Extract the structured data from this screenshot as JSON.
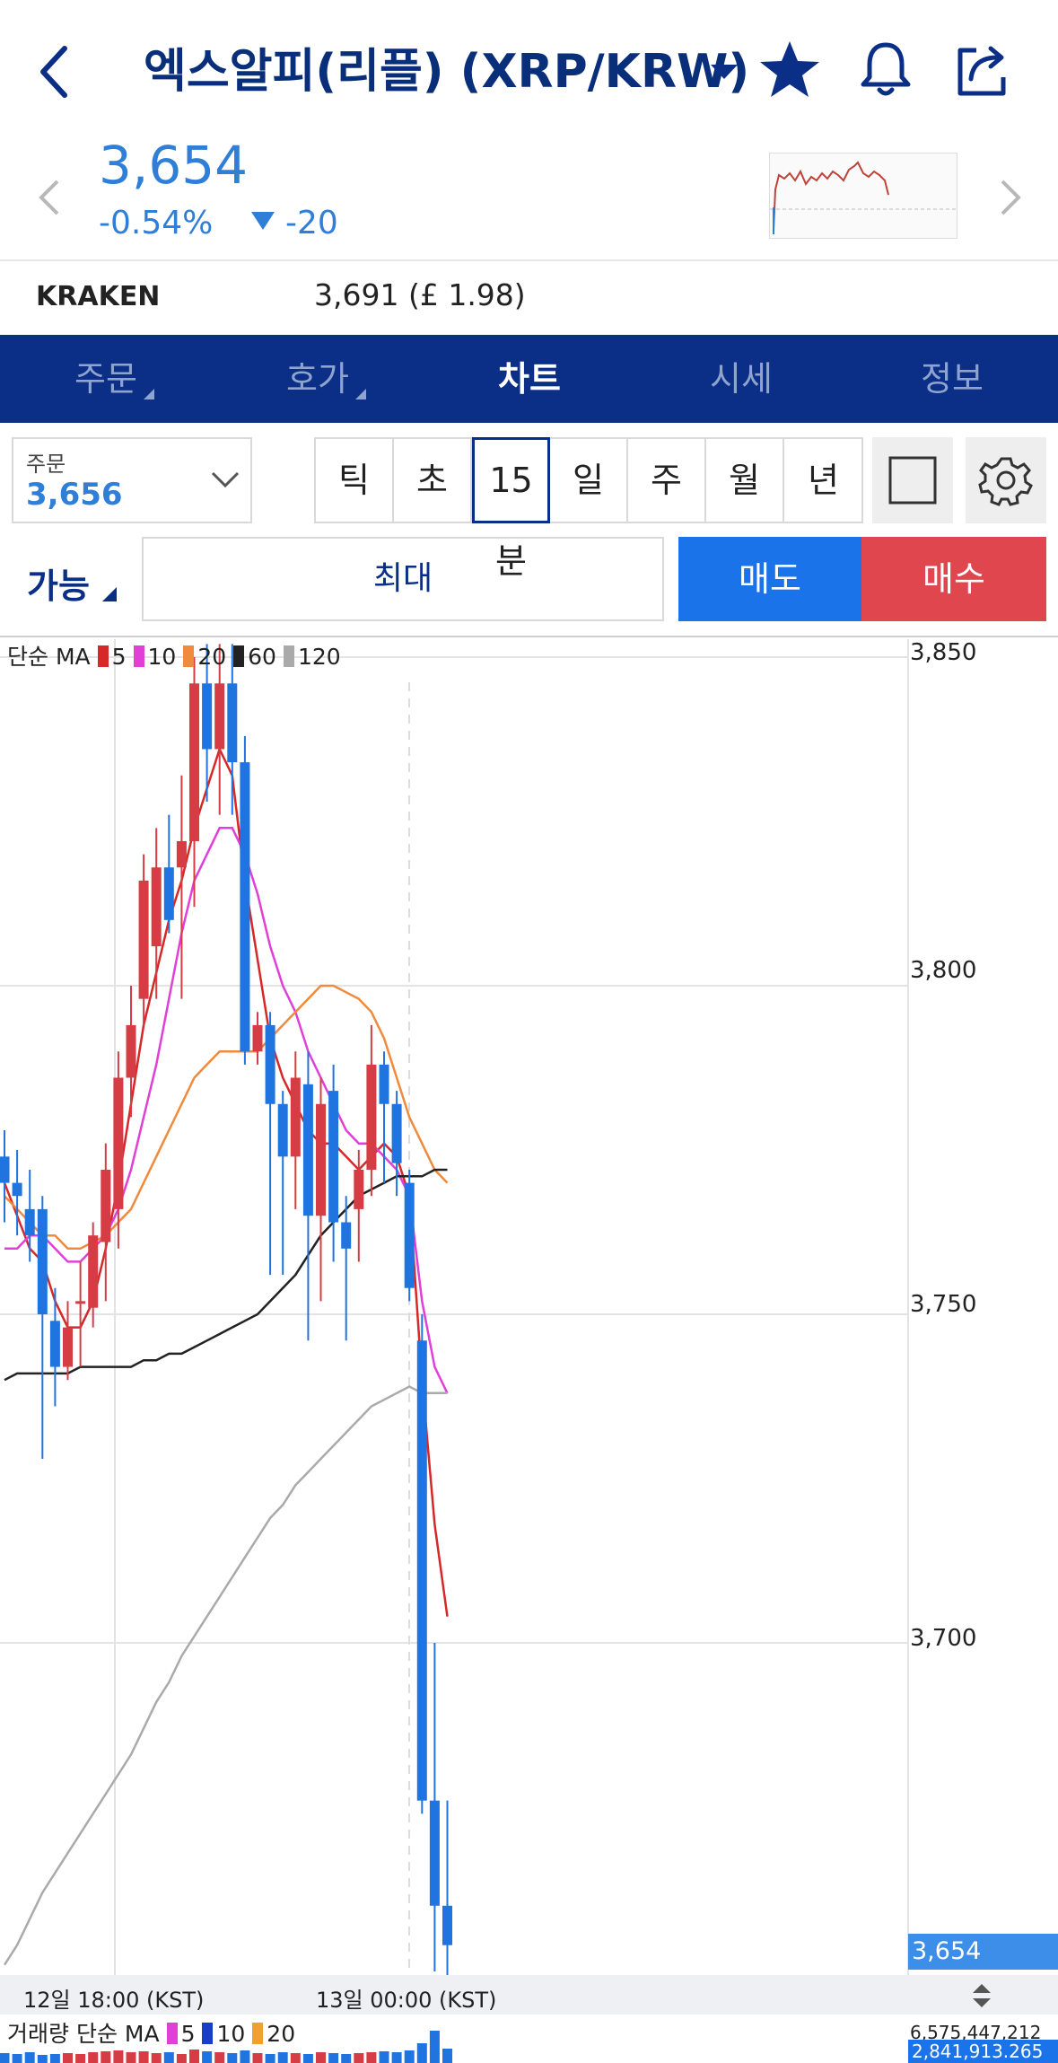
{
  "header": {
    "title": "엑스알피(리플) (XRP/KRW)"
  },
  "price": {
    "current": "3,654",
    "change_pct": "-0.54%",
    "change_abs": "-20",
    "direction": "down",
    "color": "#2f7ed8"
  },
  "exchange": {
    "name": "KRAKEN",
    "value": "3,691 (£ 1.98)"
  },
  "tabs": [
    {
      "label": "주문",
      "has_menu": true,
      "active": false
    },
    {
      "label": "호가",
      "has_menu": true,
      "active": false
    },
    {
      "label": "차트",
      "has_menu": false,
      "active": true
    },
    {
      "label": "시세",
      "has_menu": false,
      "active": false
    },
    {
      "label": "정보",
      "has_menu": false,
      "active": false
    }
  ],
  "order": {
    "label": "주문",
    "value": "3,656"
  },
  "periods": [
    {
      "label": "틱",
      "active": false
    },
    {
      "label": "초",
      "active": false
    },
    {
      "label": "15분",
      "active": true
    },
    {
      "label": "일",
      "active": false
    },
    {
      "label": "주",
      "active": false
    },
    {
      "label": "월",
      "active": false
    },
    {
      "label": "년",
      "active": false
    }
  ],
  "trade": {
    "available_label": "가능",
    "max_label": "최대",
    "sell_label": "매도",
    "buy_label": "매수",
    "sell_color": "#1a73e8",
    "buy_color": "#e0464e"
  },
  "chart_data": {
    "type": "candlestick",
    "legend": {
      "prefix": "단순 MA",
      "items": [
        {
          "label": "5",
          "color": "#d62828"
        },
        {
          "label": "10",
          "color": "#e040d8"
        },
        {
          "label": "20",
          "color": "#f08a3c"
        },
        {
          "label": "60",
          "color": "#222222"
        },
        {
          "label": "120",
          "color": "#aaaaaa"
        }
      ]
    },
    "y_ticks": [
      "3,850",
      "3,800",
      "3,750",
      "3,700"
    ],
    "y_tick_values": [
      3850,
      3800,
      3750,
      3700
    ],
    "ylim": [
      3646,
      3852
    ],
    "current_price_tag": "3,654",
    "x_ticks": [
      "12일 18:00 (KST)",
      "13일 00:00 (KST)"
    ],
    "up_color": "#d63c44",
    "down_color": "#1f74e0",
    "candles": [
      {
        "o": 3774,
        "h": 3778,
        "l": 3764,
        "c": 3770
      },
      {
        "o": 3770,
        "h": 3775,
        "l": 3762,
        "c": 3768
      },
      {
        "o": 3766,
        "h": 3772,
        "l": 3758,
        "c": 3762
      },
      {
        "o": 3766,
        "h": 3768,
        "l": 3728,
        "c": 3750
      },
      {
        "o": 3749,
        "h": 3754,
        "l": 3736,
        "c": 3742
      },
      {
        "o": 3742,
        "h": 3752,
        "l": 3740,
        "c": 3748
      },
      {
        "o": 3752,
        "h": 3758,
        "l": 3742,
        "c": 3752
      },
      {
        "o": 3751,
        "h": 3764,
        "l": 3748,
        "c": 3762
      },
      {
        "o": 3761,
        "h": 3776,
        "l": 3752,
        "c": 3772
      },
      {
        "o": 3766,
        "h": 3790,
        "l": 3760,
        "c": 3786
      },
      {
        "o": 3786,
        "h": 3800,
        "l": 3780,
        "c": 3794
      },
      {
        "o": 3798,
        "h": 3820,
        "l": 3794,
        "c": 3816
      },
      {
        "o": 3806,
        "h": 3824,
        "l": 3798,
        "c": 3818
      },
      {
        "o": 3818,
        "h": 3826,
        "l": 3808,
        "c": 3810
      },
      {
        "o": 3818,
        "h": 3832,
        "l": 3798,
        "c": 3822
      },
      {
        "o": 3822,
        "h": 3850,
        "l": 3812,
        "c": 3846
      },
      {
        "o": 3846,
        "h": 3852,
        "l": 3828,
        "c": 3836
      },
      {
        "o": 3836,
        "h": 3852,
        "l": 3826,
        "c": 3846
      },
      {
        "o": 3846,
        "h": 3852,
        "l": 3826,
        "c": 3834
      },
      {
        "o": 3834,
        "h": 3838,
        "l": 3788,
        "c": 3790
      },
      {
        "o": 3790,
        "h": 3796,
        "l": 3788,
        "c": 3794
      },
      {
        "o": 3794,
        "h": 3796,
        "l": 3756,
        "c": 3782
      },
      {
        "o": 3782,
        "h": 3784,
        "l": 3756,
        "c": 3774
      },
      {
        "o": 3774,
        "h": 3790,
        "l": 3766,
        "c": 3786
      },
      {
        "o": 3785,
        "h": 3790,
        "l": 3746,
        "c": 3765
      },
      {
        "o": 3765,
        "h": 3786,
        "l": 3752,
        "c": 3782
      },
      {
        "o": 3784,
        "h": 3788,
        "l": 3758,
        "c": 3764
      },
      {
        "o": 3764,
        "h": 3768,
        "l": 3746,
        "c": 3760
      },
      {
        "o": 3766,
        "h": 3775,
        "l": 3758,
        "c": 3772
      },
      {
        "o": 3772,
        "h": 3794,
        "l": 3768,
        "c": 3788
      },
      {
        "o": 3788,
        "h": 3790,
        "l": 3770,
        "c": 3782
      },
      {
        "o": 3782,
        "h": 3784,
        "l": 3768,
        "c": 3773
      },
      {
        "o": 3770,
        "h": 3772,
        "l": 3752,
        "c": 3754
      },
      {
        "o": 3746,
        "h": 3750,
        "l": 3674,
        "c": 3676
      },
      {
        "o": 3676,
        "h": 3700,
        "l": 3650,
        "c": 3660
      },
      {
        "o": 3660,
        "h": 3676,
        "l": 3648,
        "c": 3654
      }
    ],
    "ma_series": [
      {
        "name": "5",
        "color": "#d62828",
        "values": [
          3770,
          3765,
          3760,
          3758,
          3752,
          3748,
          3748,
          3752,
          3760,
          3770,
          3782,
          3794,
          3802,
          3810,
          3816,
          3824,
          3830,
          3836,
          3832,
          3816,
          3804,
          3792,
          3786,
          3782,
          3778,
          3776,
          3776,
          3774,
          3772,
          3774,
          3776,
          3774,
          3768,
          3740,
          3718,
          3704
        ]
      },
      {
        "name": "10",
        "color": "#e040d8",
        "values": [
          3760,
          3760,
          3762,
          3762,
          3760,
          3758,
          3758,
          3760,
          3762,
          3766,
          3772,
          3780,
          3788,
          3798,
          3808,
          3816,
          3820,
          3824,
          3824,
          3820,
          3814,
          3806,
          3800,
          3796,
          3790,
          3786,
          3782,
          3778,
          3776,
          3776,
          3774,
          3772,
          3768,
          3752,
          3742,
          3738
        ]
      },
      {
        "name": "20",
        "color": "#f08a3c",
        "values": [
          3768,
          3766,
          3764,
          3762,
          3762,
          3760,
          3760,
          3761,
          3762,
          3764,
          3766,
          3770,
          3774,
          3778,
          3782,
          3786,
          3788,
          3790,
          3790,
          3790,
          3790,
          3792,
          3794,
          3796,
          3798,
          3800,
          3800,
          3799,
          3798,
          3796,
          3792,
          3786,
          3780,
          3776,
          3772,
          3770
        ]
      },
      {
        "name": "60",
        "color": "#222222",
        "values": [
          3740,
          3741,
          3741,
          3741,
          3741,
          3741,
          3742,
          3742,
          3742,
          3742,
          3742,
          3743,
          3743,
          3744,
          3744,
          3745,
          3746,
          3747,
          3748,
          3749,
          3750,
          3752,
          3754,
          3756,
          3759,
          3762,
          3764,
          3766,
          3768,
          3769,
          3770,
          3771,
          3771,
          3771,
          3772,
          3772
        ]
      },
      {
        "name": "120",
        "color": "#aaaaaa",
        "values": [
          3651,
          3654,
          3658,
          3662,
          3665,
          3668,
          3671,
          3674,
          3677,
          3680,
          3683,
          3687,
          3691,
          3694,
          3698,
          3701,
          3704,
          3707,
          3710,
          3713,
          3716,
          3719,
          3721,
          3724,
          3726,
          3728,
          3730,
          3732,
          3734,
          3736,
          3737,
          3738,
          3739,
          3738,
          3738,
          3738
        ]
      }
    ],
    "volume": {
      "legend": {
        "prefix": "거래량 단순 MA",
        "items": [
          {
            "label": "5",
            "color": "#e040d8"
          },
          {
            "label": "10",
            "color": "#1a3cc8"
          },
          {
            "label": "20",
            "color": "#f0a02c"
          }
        ]
      },
      "top_label": "6,575,447,212",
      "current_tag": "2,841,913.265",
      "values": [
        1.1,
        1.0,
        1.2,
        0.9,
        1.0,
        1.1,
        1.0,
        1.2,
        1.3,
        1.4,
        1.2,
        1.3,
        1.1,
        1.2,
        1.0,
        1.5,
        1.3,
        1.2,
        1.1,
        1.4,
        1.1,
        1.0,
        1.2,
        1.1,
        1.0,
        1.2,
        1.1,
        1.0,
        1.1,
        1.2,
        1.3,
        1.2,
        1.4,
        2.2,
        3.6,
        1.6
      ]
    }
  }
}
